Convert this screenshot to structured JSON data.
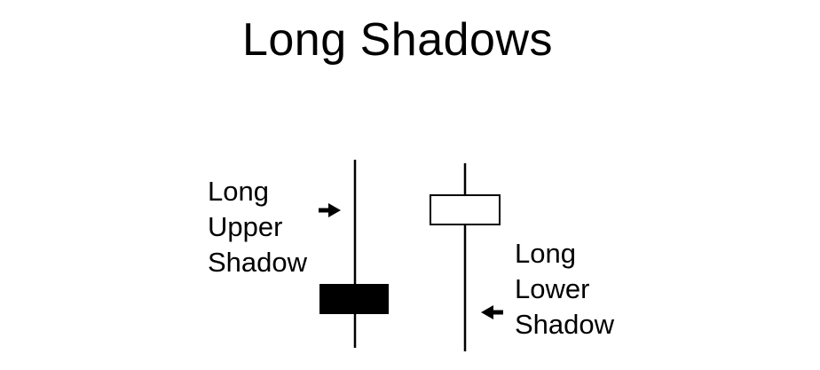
{
  "title": "Long Shadows",
  "candles": [
    {
      "name": "bearish-candle",
      "body_color": "#000000",
      "annotation": {
        "lines": [
          "Long",
          "Upper",
          "Shadow"
        ],
        "arrow_direction": "right"
      }
    },
    {
      "name": "bullish-candle",
      "body_color": "#ffffff",
      "annotation": {
        "lines": [
          "Long",
          "Lower",
          "Shadow"
        ],
        "arrow_direction": "left"
      }
    }
  ]
}
